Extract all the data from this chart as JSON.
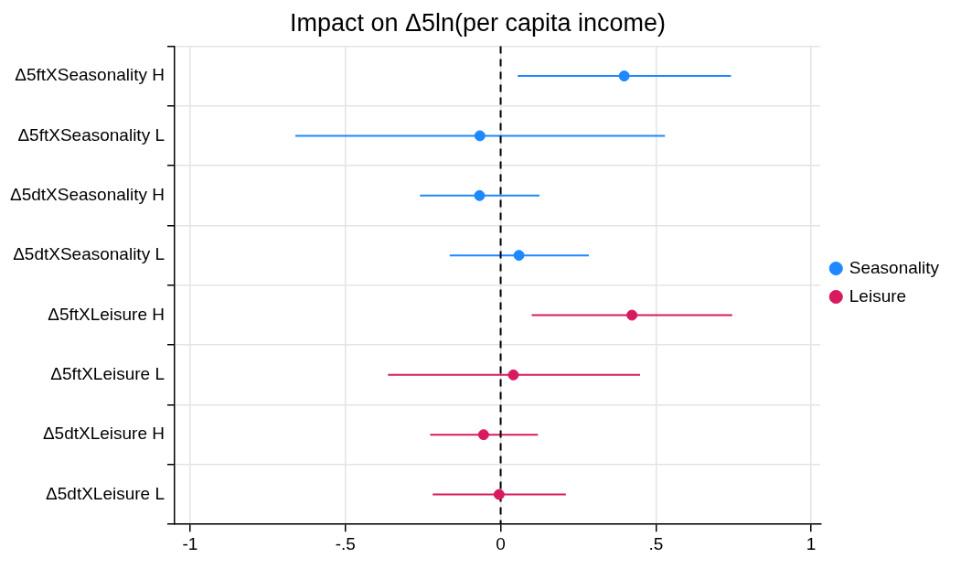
{
  "chart_data": {
    "type": "scatter",
    "orientation": "horizontal",
    "title": "Impact on Δ5ln(per capita income)",
    "categories": [
      "Δ5ftXSeasonality H",
      "Δ5ftXSeasonality L",
      "Δ5dtXSeasonality H",
      "Δ5dtXSeasonality L",
      "Δ5ftXLeisure H",
      "Δ5ftXLeisure L",
      "Δ5dtXLeisure H",
      "Δ5dtXLeisure L"
    ],
    "series": [
      {
        "name": "Seasonality",
        "color": "#1e88ff",
        "values": [
          0.398,
          -0.067,
          -0.068,
          0.059,
          null,
          null,
          null,
          null
        ],
        "errors": [
          [
            0.055,
            0.742
          ],
          [
            -0.661,
            0.529
          ],
          [
            -0.26,
            0.125
          ],
          [
            -0.164,
            0.284
          ],
          null,
          null,
          null,
          null
        ]
      },
      {
        "name": "Leisure",
        "color": "#d81b60",
        "values": [
          null,
          null,
          null,
          null,
          0.423,
          0.041,
          -0.055,
          -0.005
        ],
        "errors": [
          null,
          null,
          null,
          null,
          [
            0.1,
            0.746
          ],
          [
            -0.363,
            0.449
          ],
          [
            -0.227,
            0.12
          ],
          [
            -0.219,
            0.21
          ]
        ]
      }
    ],
    "xlim": [
      -1.05,
      1.03
    ],
    "xticks": [
      {
        "value": -1,
        "label": "-1"
      },
      {
        "value": -0.5,
        "label": "-.5"
      },
      0,
      {
        "value": 0.5,
        "label": ".5"
      },
      1
    ],
    "ref_lines": [
      {
        "axis": "x",
        "value": 0,
        "color": "#000000",
        "line_style": "dashed"
      }
    ],
    "grid": true,
    "legend": "right",
    "marker": "circle"
  }
}
